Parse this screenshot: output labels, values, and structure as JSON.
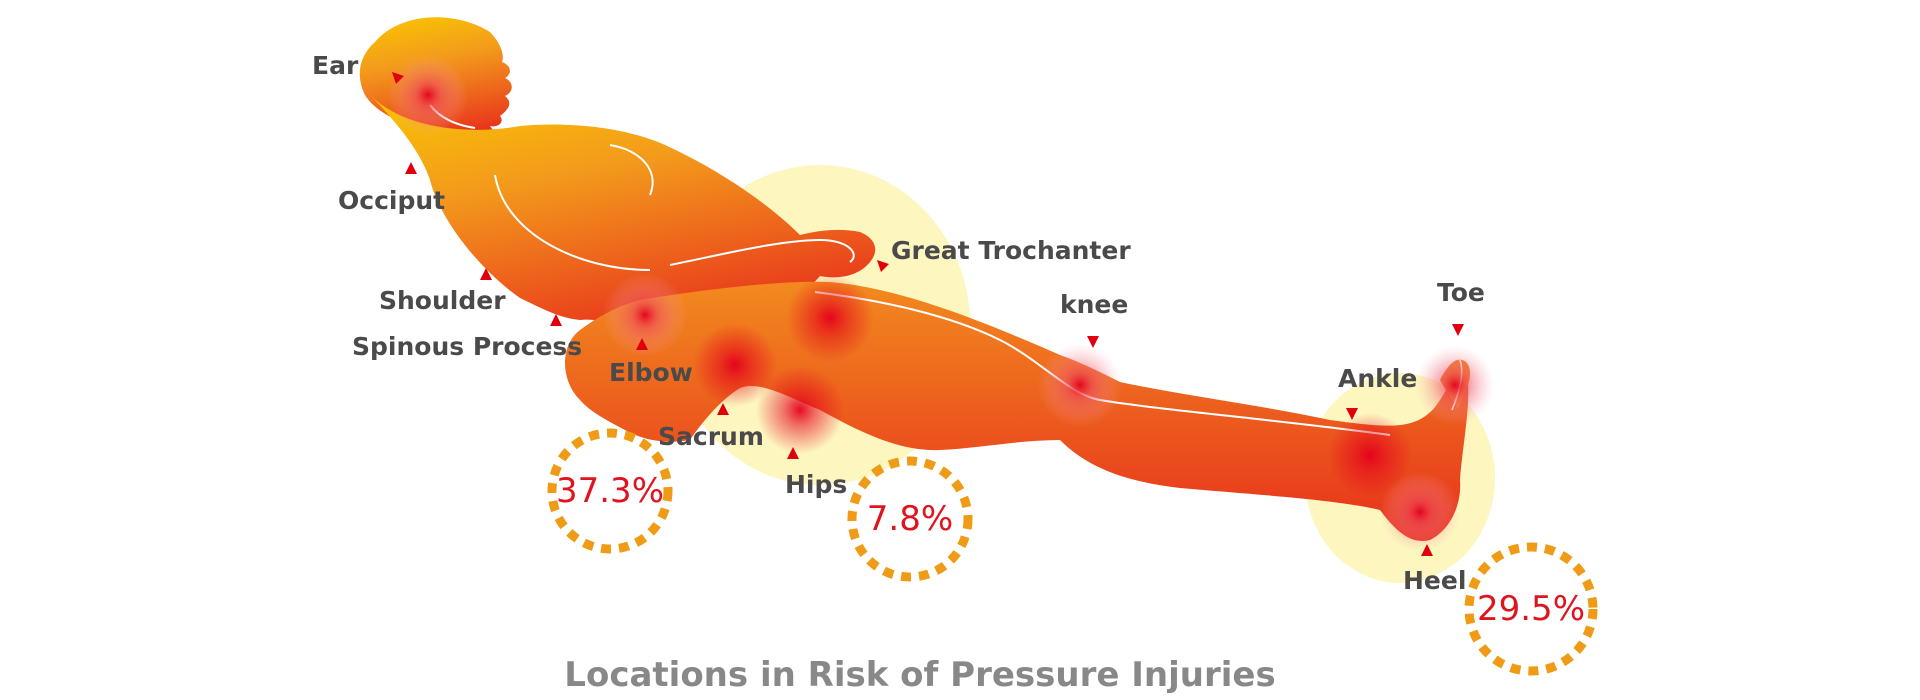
{
  "title": "Locations in Risk of Pressure Injuries",
  "colors": {
    "body_top": "#f9c200",
    "body_mid": "#f08a1e",
    "body_bottom": "#e8321c",
    "hotspot": "#e4001b",
    "marker": "#e0000d",
    "label": "#4a4a4a",
    "percent_text": "#e0141e",
    "percent_ring": "#ef9b15",
    "zone_fill": "#fdf6bf",
    "title": "#888888"
  },
  "labels": {
    "ear": "Ear",
    "occiput": "Occiput",
    "shoulder": "Shoulder",
    "spinous_process": "Spinous Process",
    "elbow": "Elbow",
    "sacrum": "Sacrum",
    "hips": "Hips",
    "great_trochanter": "Great Trochanter",
    "knee": "knee",
    "ankle": "Ankle",
    "toe": "Toe",
    "heel": "Heel"
  },
  "percentages": {
    "sacrum": "37.3%",
    "hips": "7.8%",
    "heel": "29.5%"
  }
}
